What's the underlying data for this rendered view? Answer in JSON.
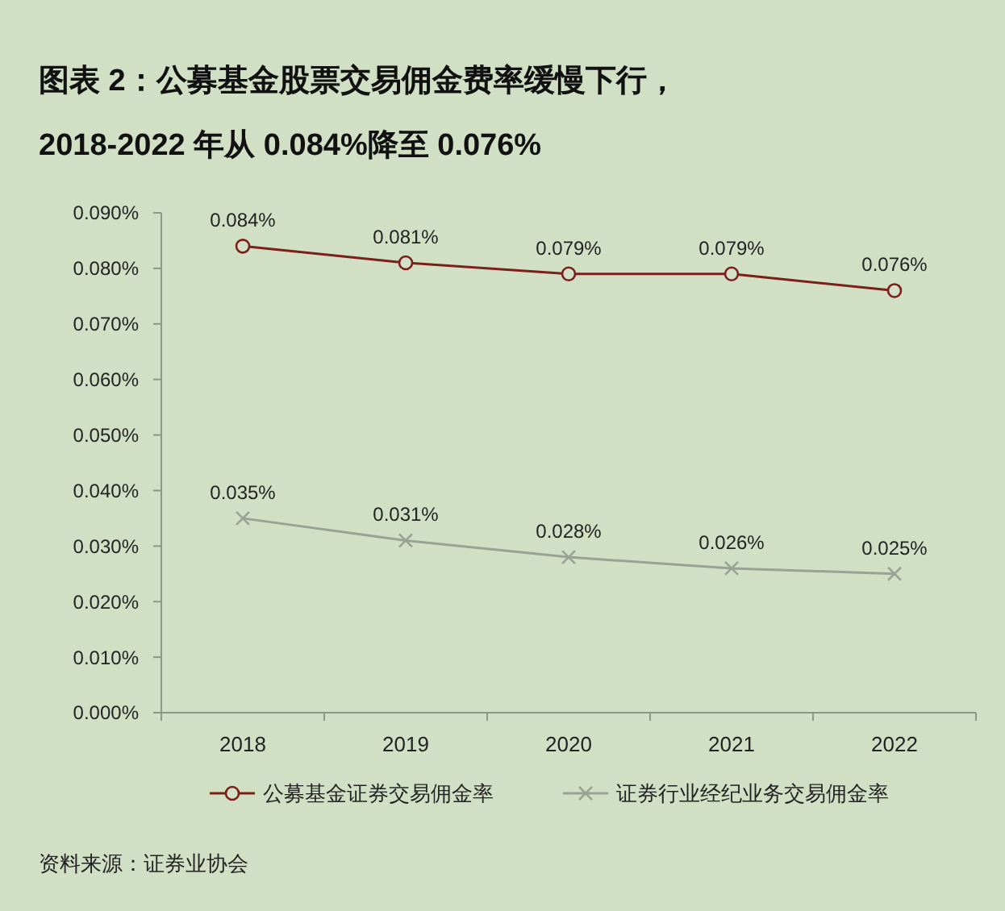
{
  "chart_data": {
    "type": "line",
    "title": "图表 2：公募基金股票交易佣金费率缓慢下行，",
    "subtitle": "2018-2022 年从 0.084%降至 0.076%",
    "categories": [
      "2018",
      "2019",
      "2020",
      "2021",
      "2022"
    ],
    "series": [
      {
        "name": "公募基金证券交易佣金率",
        "color": "#7a1f1a",
        "marker": "circle",
        "values": [
          0.084,
          0.081,
          0.079,
          0.079,
          0.076
        ],
        "value_labels": [
          "0.084%",
          "0.081%",
          "0.079%",
          "0.079%",
          "0.076%"
        ]
      },
      {
        "name": "证券行业经纪业务交易佣金率",
        "color": "#9aa294",
        "marker": "cross",
        "values": [
          0.035,
          0.031,
          0.028,
          0.026,
          0.025
        ],
        "value_labels": [
          "0.035%",
          "0.031%",
          "0.028%",
          "0.026%",
          "0.025%"
        ]
      }
    ],
    "ylim": [
      0,
      0.09
    ],
    "yticks": [
      {
        "value": 0,
        "label": "0.000%"
      },
      {
        "value": 0.01,
        "label": "0.010%"
      },
      {
        "value": 0.02,
        "label": "0.020%"
      },
      {
        "value": 0.03,
        "label": "0.030%"
      },
      {
        "value": 0.04,
        "label": "0.040%"
      },
      {
        "value": 0.05,
        "label": "0.050%"
      },
      {
        "value": 0.06,
        "label": "0.060%"
      },
      {
        "value": 0.07,
        "label": "0.070%"
      },
      {
        "value": 0.08,
        "label": "0.080%"
      },
      {
        "value": 0.09,
        "label": "0.090%"
      }
    ],
    "grid": false,
    "legend": "bottom",
    "line_style": "solid",
    "annotations": [
      "资料来源：证券业协会"
    ]
  }
}
